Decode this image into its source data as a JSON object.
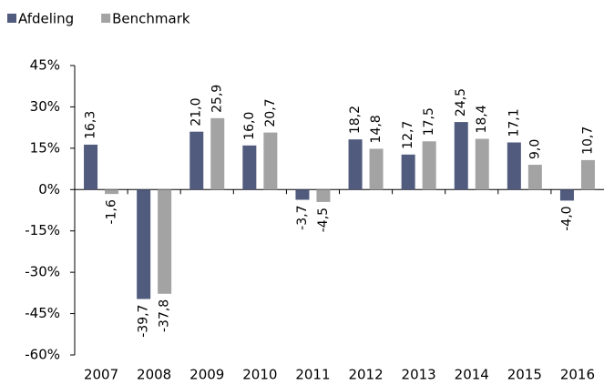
{
  "chart_data": {
    "type": "bar",
    "categories": [
      "2007",
      "2008",
      "2009",
      "2010",
      "2011",
      "2012",
      "2013",
      "2014",
      "2015",
      "2016"
    ],
    "series": [
      {
        "name": "Afdeling",
        "color": "#505b7d",
        "values": [
          16.3,
          -39.7,
          21.0,
          16.0,
          -3.7,
          18.2,
          12.7,
          24.5,
          17.1,
          -4.0
        ],
        "value_labels": [
          "16,3",
          "-39,7",
          "21,0",
          "16,0",
          "-3,7",
          "18,2",
          "12,7",
          "24,5",
          "17,1",
          "-4,0"
        ]
      },
      {
        "name": "Benchmark",
        "color": "#a3a3a3",
        "values": [
          -1.6,
          -37.8,
          25.9,
          20.7,
          -4.5,
          14.8,
          17.5,
          18.4,
          9.0,
          10.7
        ],
        "value_labels": [
          "-1,6",
          "-37,8",
          "25,9",
          "20,7",
          "-4,5",
          "14,8",
          "17,5",
          "18,4",
          "9,0",
          "10,7"
        ]
      }
    ],
    "ylim": [
      -60,
      45
    ],
    "yticks": [
      {
        "value": -60,
        "label": "-60%"
      },
      {
        "value": -45,
        "label": "-45%"
      },
      {
        "value": -30,
        "label": "-30%"
      },
      {
        "value": -15,
        "label": "-15%"
      },
      {
        "value": 0,
        "label": "0%"
      },
      {
        "value": 15,
        "label": "15%"
      },
      {
        "value": 30,
        "label": "30%"
      },
      {
        "value": 45,
        "label": "45%"
      }
    ],
    "legend": "top-left"
  }
}
